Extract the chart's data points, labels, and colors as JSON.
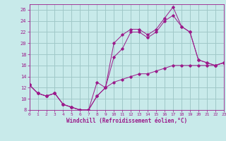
{
  "xlabel": "Windchill (Refroidissement éolien,°C)",
  "bg_color": "#c8eaea",
  "grid_color": "#a0c8c8",
  "line_color": "#9b1a8a",
  "line1_x": [
    0,
    1,
    2,
    3,
    4,
    5,
    6,
    7,
    8,
    9,
    10,
    11,
    12,
    13,
    14,
    15,
    16,
    17,
    18,
    19,
    20,
    21,
    22,
    23
  ],
  "line1_y": [
    12.5,
    11.0,
    10.5,
    11.0,
    9.0,
    8.5,
    8.0,
    8.0,
    13.0,
    12.0,
    20.0,
    21.5,
    22.5,
    22.5,
    21.5,
    22.5,
    24.5,
    26.5,
    23.0,
    22.0,
    17.0,
    16.5,
    16.0,
    16.5
  ],
  "line2_x": [
    0,
    1,
    2,
    3,
    4,
    5,
    6,
    7,
    8,
    9,
    10,
    11,
    12,
    13,
    14,
    15,
    16,
    17,
    18,
    19,
    20,
    21,
    22,
    23
  ],
  "line2_y": [
    12.5,
    11.0,
    10.5,
    11.0,
    9.0,
    8.5,
    8.0,
    8.0,
    10.5,
    12.0,
    17.5,
    19.0,
    22.0,
    22.0,
    21.0,
    22.0,
    24.0,
    25.0,
    23.0,
    22.0,
    17.0,
    16.5,
    16.0,
    16.5
  ],
  "line3_x": [
    0,
    1,
    2,
    3,
    4,
    5,
    6,
    7,
    8,
    9,
    10,
    11,
    12,
    13,
    14,
    15,
    16,
    17,
    18,
    19,
    20,
    21,
    22,
    23
  ],
  "line3_y": [
    12.5,
    11.0,
    10.5,
    11.0,
    9.0,
    8.5,
    8.0,
    8.0,
    10.5,
    12.0,
    13.0,
    13.5,
    14.0,
    14.5,
    14.5,
    15.0,
    15.5,
    16.0,
    16.0,
    16.0,
    16.0,
    16.0,
    16.0,
    16.5
  ],
  "ylim": [
    8,
    27
  ],
  "xlim": [
    0,
    23
  ],
  "yticks": [
    8,
    10,
    12,
    14,
    16,
    18,
    20,
    22,
    24,
    26
  ],
  "xticks": [
    0,
    1,
    2,
    3,
    4,
    5,
    6,
    7,
    8,
    9,
    10,
    11,
    12,
    13,
    14,
    15,
    16,
    17,
    18,
    19,
    20,
    21,
    22,
    23
  ]
}
